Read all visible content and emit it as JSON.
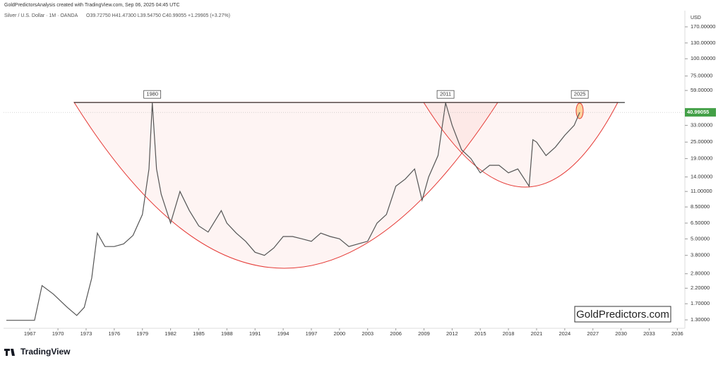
{
  "header": {
    "credit": "GoldPredictorsAnalysis created with TradingView.com, Sep 06, 2025 04:45 UTC",
    "brand": "TradingView"
  },
  "chart_data": {
    "type": "line",
    "title": "Silver / U.S. Dollar · 1M · OANDA",
    "subtitle": "O39.72750 H41.47300 L39.54750 C40.99055 +1.29905 (+3.27%)",
    "y_axis_label": "USD",
    "watermark": "GoldPredictors.com",
    "log_scale": true,
    "color": "#555555",
    "x": [
      1964.5,
      1967.5,
      1968.3,
      1969.5,
      1971,
      1972,
      1972.8,
      1973.6,
      1974.2,
      1975,
      1976,
      1977,
      1978,
      1979,
      1979.7,
      1980.05,
      1980.5,
      1981,
      1982,
      1983,
      1984,
      1985,
      1986,
      1987.4,
      1988,
      1989,
      1990,
      1991,
      1992,
      1993,
      1994,
      1995,
      1996,
      1997,
      1998,
      1999,
      2000,
      2001,
      2002,
      2003,
      2004,
      2005,
      2006,
      2007,
      2008,
      2008.8,
      2009.5,
      2010.5,
      2011.3,
      2012,
      2013,
      2014,
      2015,
      2016,
      2017,
      2018,
      2019,
      2020.2,
      2020.6,
      2021,
      2022,
      2023,
      2024,
      2025,
      2025.6
    ],
    "values": [
      1.29,
      1.29,
      2.3,
      2.0,
      1.6,
      1.4,
      1.6,
      2.6,
      5.5,
      4.4,
      4.4,
      4.6,
      5.3,
      7.5,
      16,
      48,
      16,
      10.5,
      6.5,
      11,
      8,
      6.2,
      5.6,
      8,
      6.5,
      5.5,
      4.8,
      4.0,
      3.8,
      4.3,
      5.2,
      5.2,
      5.0,
      4.8,
      5.5,
      5.2,
      5.0,
      4.4,
      4.6,
      4.8,
      6.5,
      7.5,
      12,
      13.5,
      16,
      9.5,
      14,
      20,
      48,
      33,
      22,
      19,
      15,
      17,
      17,
      15,
      16,
      12,
      26,
      25,
      20,
      23,
      28,
      33,
      40.99055
    ],
    "xlim": [
      1964.2,
      2036.8
    ],
    "xticks": [
      1967,
      1970,
      1973,
      1976,
      1979,
      1982,
      1985,
      1988,
      1991,
      1994,
      1997,
      2000,
      2003,
      2006,
      2009,
      2012,
      2015,
      2018,
      2021,
      2024,
      2027,
      2030,
      2033,
      2036
    ],
    "ylim": [
      1.13,
      210
    ],
    "yticks": [
      {
        "value": 1.3,
        "label": "1.30000"
      },
      {
        "value": 1.7,
        "label": "1.70000"
      },
      {
        "value": 2.2,
        "label": "2.20000"
      },
      {
        "value": 2.8,
        "label": "2.80000"
      },
      {
        "value": 3.8,
        "label": "3.80000"
      },
      {
        "value": 5,
        "label": "5.00000"
      },
      {
        "value": 6.5,
        "label": "6.50000"
      },
      {
        "value": 8.5,
        "label": "8.50000"
      },
      {
        "value": 11,
        "label": "11.00000"
      },
      {
        "value": 14,
        "label": "14.00000"
      },
      {
        "value": 19,
        "label": "19.00000"
      },
      {
        "value": 25,
        "label": "25.00000"
      },
      {
        "value": 33,
        "label": "33.00000"
      },
      {
        "value": 59,
        "label": "59.00000"
      },
      {
        "value": 75,
        "label": "75.00000"
      },
      {
        "value": 100,
        "label": "100.00000"
      },
      {
        "value": 130,
        "label": "130.00000"
      },
      {
        "value": 170,
        "label": "170.00000"
      }
    ],
    "resistance": {
      "value": 48.3,
      "x": [
        1971.7,
        2030.4
      ]
    },
    "annotations": [
      {
        "text": "1980",
        "x": 1980.05
      },
      {
        "text": "2011",
        "x": 2011.3
      },
      {
        "text": "2025",
        "x": 2025.6
      }
    ]
  }
}
